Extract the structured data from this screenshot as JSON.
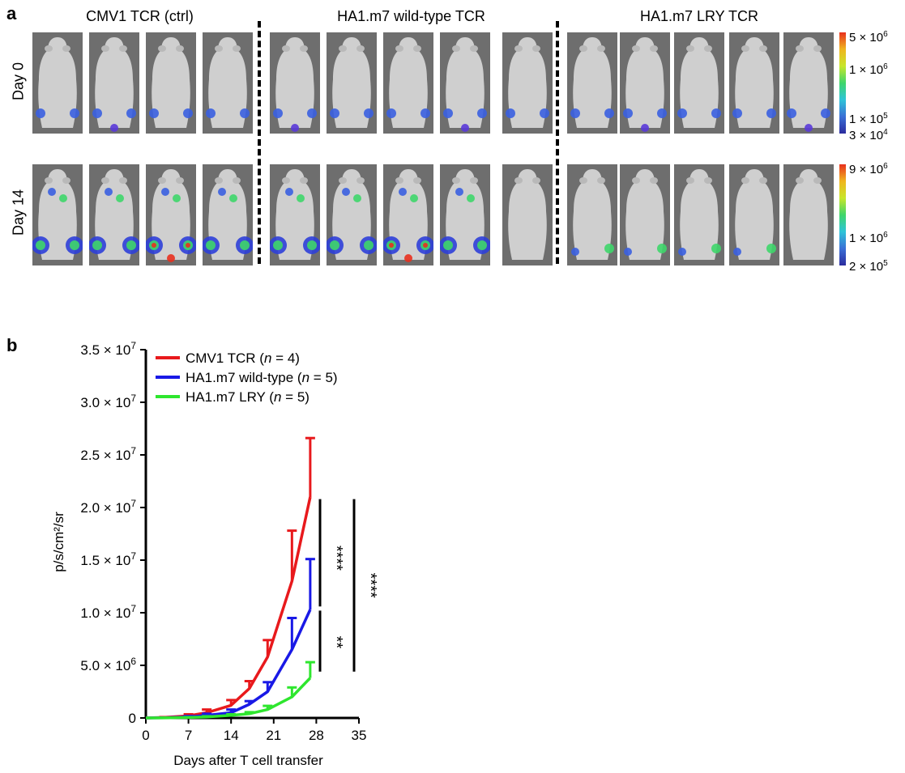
{
  "panel_a": {
    "letter": "a",
    "groups": [
      {
        "title": "CMV1 TCR (ctrl)",
        "n_mice": 4
      },
      {
        "title": "HA1.m7 wild-type TCR",
        "n_mice": 5
      },
      {
        "title": "HA1.m7 LRY TCR",
        "n_mice": 5
      }
    ],
    "rows": [
      {
        "label": "Day 0",
        "colorbar_ticks": [
          "5 × 10",
          "1 × 10",
          "1 × 10",
          "3 × 10"
        ],
        "colorbar_exps": [
          "6",
          "6",
          "5",
          "4"
        ]
      },
      {
        "label": "Day 14",
        "colorbar_ticks": [
          "9 × 10",
          "1 × 10",
          "2 × 10"
        ],
        "colorbar_exps": [
          "6",
          "6",
          "5"
        ]
      }
    ],
    "colors": {
      "mouse_bg": "#6e6e6e",
      "mouse_body": "#cfcfcf"
    }
  },
  "panel_b": {
    "letter": "b",
    "significance": [
      "****",
      "**",
      "****"
    ]
  },
  "chart_data": {
    "type": "line",
    "title": "",
    "xlabel": "Days after T cell transfer",
    "ylabel": "p/s/cm²/sr",
    "x_ticks": [
      "0",
      "7",
      "14",
      "21",
      "28",
      "35"
    ],
    "y_ticks": [
      "0",
      "5.0 × 10^6",
      "1.0 × 10^7",
      "1.5 × 10^7",
      "2.0 × 10^7",
      "2.5 × 10^7",
      "3.0 × 10^7",
      "3.5 × 10^7"
    ],
    "xlim": [
      0,
      35
    ],
    "ylim": [
      0,
      35000000
    ],
    "x": [
      0,
      3,
      7,
      10,
      14,
      17,
      20,
      24,
      27
    ],
    "series": [
      {
        "name": "CMV1 TCR (n = 4)",
        "legend_main": "CMV1 TCR (",
        "legend_n": "n",
        "legend_rest": " = 4)",
        "color": "#e8191c",
        "values": [
          0,
          50000,
          200000,
          500000,
          1200000,
          2800000,
          5800000,
          13000000,
          21000000
        ],
        "errors": [
          0,
          30000,
          150000,
          300000,
          500000,
          700000,
          1600000,
          4800000,
          5600000
        ]
      },
      {
        "name": "HA1.m7 wild-type (n = 5)",
        "legend_main": "HA1.m7 wild-type (",
        "legend_n": "n",
        "legend_rest": " = 5)",
        "color": "#1919e6",
        "values": [
          0,
          20000,
          100000,
          250000,
          500000,
          1300000,
          2500000,
          6500000,
          10300000
        ],
        "errors": [
          0,
          15000,
          80000,
          150000,
          300000,
          300000,
          900000,
          3000000,
          4800000
        ]
      },
      {
        "name": "HA1.m7 LRY (n = 5)",
        "legend_main": "HA1.m7 LRY (",
        "legend_n": "n",
        "legend_rest": " = 5)",
        "color": "#2ee62e",
        "values": [
          0,
          10000,
          50000,
          100000,
          250000,
          400000,
          800000,
          2000000,
          3800000
        ],
        "errors": [
          0,
          5000,
          30000,
          60000,
          100000,
          150000,
          350000,
          900000,
          1500000
        ]
      }
    ],
    "grid": false,
    "legend_position": "top-left"
  }
}
